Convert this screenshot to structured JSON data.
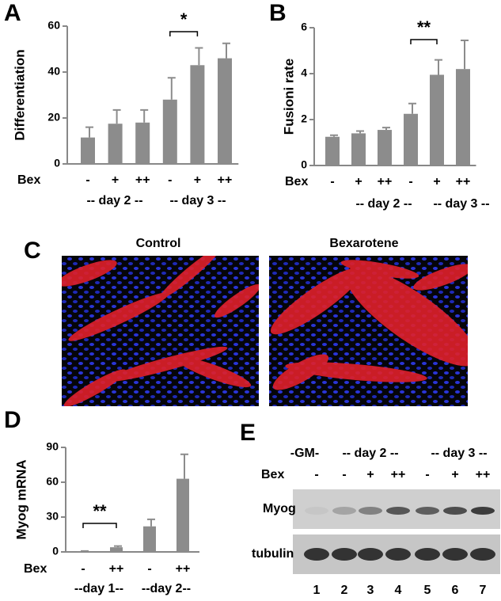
{
  "chart_data": [
    {
      "type": "bar",
      "panel": "A",
      "y_label": "Differentiation",
      "row_label": "Bex",
      "categories": [
        "-",
        "+",
        "++",
        "-",
        "+",
        "++"
      ],
      "values": [
        11.5,
        17.5,
        18,
        28,
        43,
        46
      ],
      "errors": [
        4.5,
        6,
        5.5,
        9.5,
        7.5,
        6.5
      ],
      "color": "#8c8c8c",
      "ylim": [
        0,
        60
      ],
      "yticks": [
        0,
        20,
        40,
        60
      ],
      "groups": [
        "-- day 2 --",
        "-- day 3 --"
      ],
      "annotations": [
        "*"
      ]
    },
    {
      "type": "bar",
      "panel": "B",
      "y_label": "Fusioni rate",
      "row_label": "Bex",
      "categories": [
        "-",
        "+",
        "++",
        "-",
        "+",
        "++"
      ],
      "values": [
        1.25,
        1.4,
        1.55,
        2.25,
        3.95,
        4.2
      ],
      "errors": [
        0.07,
        0.1,
        0.1,
        0.45,
        0.65,
        1.25
      ],
      "color": "#8c8c8c",
      "ylim": [
        0,
        6
      ],
      "yticks": [
        0,
        2,
        4,
        6
      ],
      "groups": [
        "-- day 2 --",
        "-- day 3 --"
      ],
      "annotations": [
        "**"
      ]
    },
    {
      "type": "bar",
      "panel": "D",
      "y_label": "Myog mRNA",
      "row_label": "Bex",
      "categories": [
        "-",
        "++",
        "-",
        "++"
      ],
      "values": [
        0.5,
        4,
        22,
        63
      ],
      "errors": [
        0.3,
        1,
        6,
        21
      ],
      "color": "#8c8c8c",
      "ylim": [
        0,
        90
      ],
      "yticks": [
        0,
        30,
        60,
        90
      ],
      "groups": [
        "--day 1--",
        "--day 2--"
      ],
      "annotations": [
        "**"
      ]
    }
  ],
  "images": {
    "panel": "C",
    "titles": [
      "Control",
      "Bexarotene"
    ]
  },
  "blot": {
    "panel": "E",
    "header": [
      "-GM-",
      "-- day 2 --",
      "-- day 3 --"
    ],
    "row_label": "Bex",
    "treatments": [
      "-",
      "-",
      "+",
      "++",
      "-",
      "+",
      "++"
    ],
    "rows": [
      "Myog",
      "tubulin"
    ],
    "lanes": [
      "1",
      "2",
      "3",
      "4",
      "5",
      "6",
      "7"
    ]
  }
}
